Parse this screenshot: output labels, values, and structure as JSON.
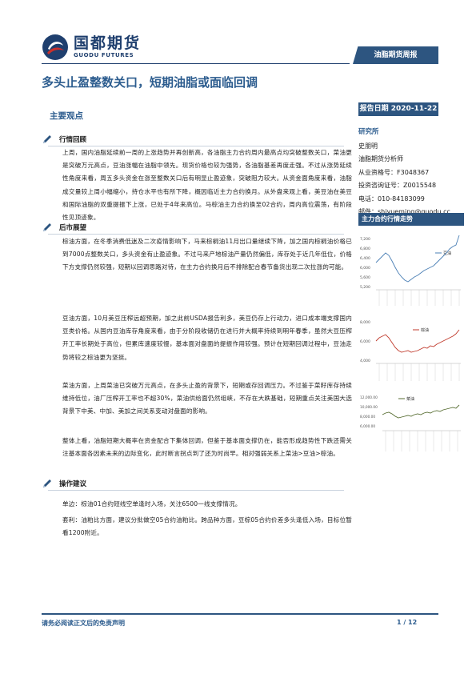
{
  "header": {
    "logo_cn": "国都期货",
    "logo_en": "GUODU FUTURES",
    "report_type": "油脂期货周报"
  },
  "title": "多头止盈整数关口，短期油脂或面临回调",
  "report_date": "报告日期 2020-11-22",
  "sidebar": {
    "researcher_label": "研究所",
    "lines": [
      "史朋明",
      "油脂期货分析师",
      "从业资格号：F3048367",
      "投资咨询证号：Z0015548",
      "电话：010-84183099",
      "邮件：shiyueming@guodu.cc"
    ],
    "trend_label": "主力合约行情走势"
  },
  "section_title": "主要观点",
  "subsections": {
    "review": "行情回顾",
    "outlook": "后市展望",
    "advice": "操作建议"
  },
  "paragraphs": {
    "review": "上周，国内油脂延续前一周的上涨趋势并再创新高，各油脂主力合约周内最高点均突破整数关口，菜油更是突破万元高点，豆油涨幅在油脂中领先。现货价格也较为强势，各油脂基差再度走强。不过从涨势延续性角度来看，周五多头资金在涨至整数关口后有明显止盈迹象，突破阻力较大。从资金面角度来看，油脂成交量较上周小幅缩小，持仓水平也有所下降，概因临近主力合约换月。从外盘来观上看，美豆油在美豆和国际油脂的双重提振下上涨，已处于4年来高位。马棕油主力合约换至02合约，周内高位震荡，有阶段性见顶迹象。",
    "outlook1": "棕油方面，在冬季消费低迷及二次疫情影响下，马来棕榈油11月出口量继续下降，加之国内棕榈油价格已到7000点整数关口，多头资金有止盈迹象。不过马来产地棕油产量仍然偏低，库存处于近几年低位，价格下方支撑仍然较强，短期以回调思路对待，在主力合约换月后不排除配合春节备货出现二次拉涨的可能。",
    "outlook2": "豆油方面，10月美豆压榨远超预期，加之此前USDA报告利多，美豆仍存上行动力，进口成本端支撑国内豆类价格。从国内豆油库存角度来看，由于分阶段收储仍在进行并大概率持续到明年春季，虽然大豆压榨开工率长期处于高位，但累库速度较慢，基本面对盘面的提振作用较强。预计在短期回调过程中，豆油走势将较之棕油更为坚挺。",
    "outlook3": "菜油方面，上周菜油已突破万元高点，在多头止盈的背景下，短期或存回调压力。不过鉴于菜籽库存持续维持低位，油厂压榨开工率也不超30%，菜油供给面仍然组峡，不存在大跌基础，短期重点关注美国大选背景下中美、中加、美加之间关系变动对盘面的影响。",
    "outlook4": "整体上看，油脂短期大概率在资金配合下集体回调，但鉴于基本面支撑仍在，能否形成趋势性下跌还需关注基本面各因素未来的边际变化，此时断言拐点到了还为时尚早。相对强弱关系上菜油>豆油>棕油。",
    "advice1": "单边：棕油01合约短线空单逢时入场，关注6500一线支撑情况。",
    "advice2": "套利：油粕比方面，建议分批做空05合约油粕比。跨品种方面，豆棕05合约价差多头逢低入场，目标位暂看1200附近。"
  },
  "charts": [
    {
      "legend": "豆油",
      "y_ticks": [
        "7,200",
        "6,800",
        "6,400",
        "6,000",
        "5,600",
        "5,200"
      ],
      "color": "#4a7fb5"
    },
    {
      "legend": "棕油",
      "y_ticks": [
        "8,000",
        "6,000",
        "4,000"
      ],
      "color": "#c0392b"
    },
    {
      "legend": "菜油",
      "y_ticks": [
        "12,000.00",
        "10,000.00",
        "8,000.00",
        "6,000.00"
      ],
      "color": "#556b2f"
    }
  ],
  "footer": {
    "disclaimer": "请务必阅读正文后的免责声明",
    "page": "1 / 12"
  }
}
